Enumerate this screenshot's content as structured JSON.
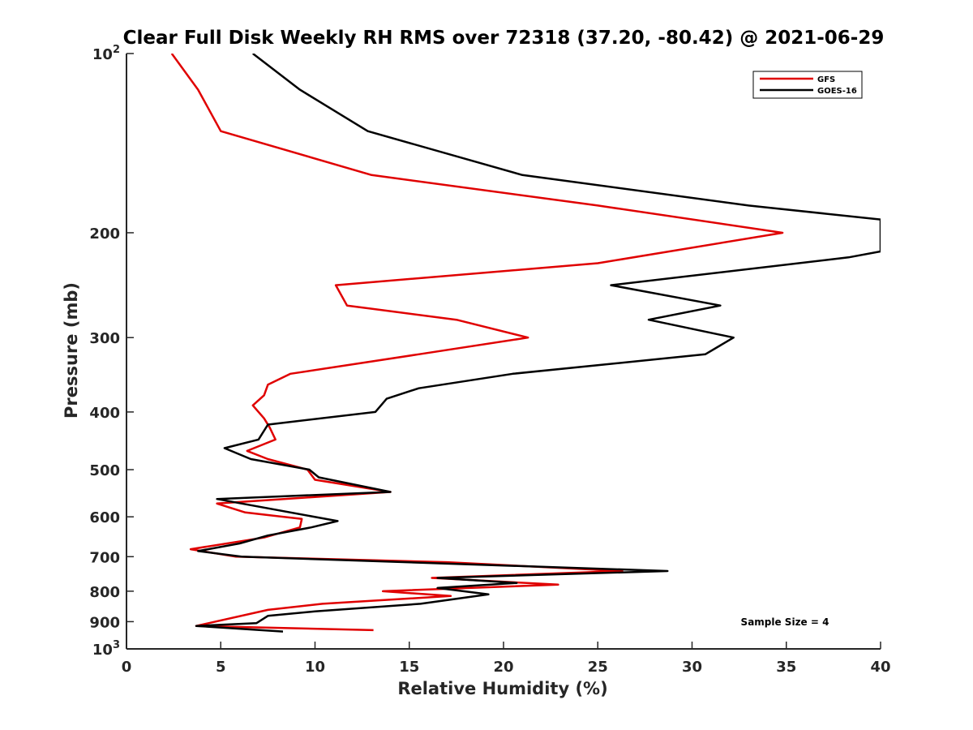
{
  "chart_data": {
    "type": "line",
    "title": "Clear Full Disk Weekly RH RMS over 72318 (37.20, -80.42) @ 2021-06-29",
    "xlabel": "Relative Humidity (%)",
    "ylabel": "Pressure (mb)",
    "xlim": [
      0,
      40
    ],
    "ylim": [
      100,
      1000
    ],
    "y_scale": "log",
    "y_reversed": true,
    "grid": false,
    "legend_position": "top-right",
    "x_ticks": [
      0,
      5,
      10,
      15,
      20,
      25,
      30,
      35,
      40
    ],
    "x_tick_labels": [
      "0",
      "5",
      "10",
      "15",
      "20",
      "25",
      "30",
      "35",
      "40"
    ],
    "y_ticks": [
      100,
      200,
      300,
      400,
      500,
      600,
      700,
      800,
      900,
      1000
    ],
    "y_tick_labels": [
      {
        "base": "10",
        "exp": "2"
      },
      {
        "base": "200",
        "exp": ""
      },
      {
        "base": "300",
        "exp": ""
      },
      {
        "base": "400",
        "exp": ""
      },
      {
        "base": "500",
        "exp": ""
      },
      {
        "base": "600",
        "exp": ""
      },
      {
        "base": "700",
        "exp": ""
      },
      {
        "base": "800",
        "exp": ""
      },
      {
        "base": "900",
        "exp": ""
      },
      {
        "base": "10",
        "exp": "3"
      }
    ],
    "series": [
      {
        "name": "GFS",
        "color": "#e00000",
        "points": [
          [
            2.4,
            100
          ],
          [
            3.8,
            115
          ],
          [
            5.0,
            135
          ],
          [
            13.0,
            160
          ],
          [
            25.0,
            180
          ],
          [
            34.8,
            200
          ],
          [
            25.0,
            225
          ],
          [
            11.1,
            245
          ],
          [
            11.7,
            265
          ],
          [
            17.5,
            280
          ],
          [
            21.3,
            300
          ],
          [
            15.5,
            320
          ],
          [
            8.7,
            345
          ],
          [
            7.5,
            360
          ],
          [
            7.3,
            375
          ],
          [
            6.7,
            390
          ],
          [
            7.3,
            410
          ],
          [
            7.6,
            425
          ],
          [
            7.9,
            445
          ],
          [
            6.4,
            465
          ],
          [
            7.5,
            480
          ],
          [
            9.6,
            500
          ],
          [
            10.0,
            520
          ],
          [
            14.0,
            545
          ],
          [
            4.8,
            570
          ],
          [
            6.3,
            590
          ],
          [
            9.3,
            605
          ],
          [
            9.2,
            625
          ],
          [
            7.3,
            650
          ],
          [
            3.4,
            680
          ],
          [
            5.8,
            700
          ],
          [
            17.0,
            715
          ],
          [
            26.3,
            740
          ],
          [
            16.2,
            760
          ],
          [
            22.9,
            780
          ],
          [
            13.6,
            800
          ],
          [
            17.2,
            815
          ],
          [
            10.4,
            840
          ],
          [
            7.5,
            860
          ],
          [
            3.7,
            915
          ],
          [
            13.1,
            930
          ]
        ]
      },
      {
        "name": "GOES-16",
        "color": "#000000",
        "points": [
          [
            6.7,
            100
          ],
          [
            9.2,
            115
          ],
          [
            12.8,
            135
          ],
          [
            21.0,
            160
          ],
          [
            33.0,
            180
          ],
          [
            40.0,
            190
          ],
          [
            40.0,
            215
          ],
          [
            38.3,
            220
          ],
          [
            25.7,
            245
          ],
          [
            31.5,
            265
          ],
          [
            27.7,
            280
          ],
          [
            32.2,
            300
          ],
          [
            30.7,
            320
          ],
          [
            20.5,
            345
          ],
          [
            15.5,
            365
          ],
          [
            13.8,
            380
          ],
          [
            13.2,
            400
          ],
          [
            7.5,
            420
          ],
          [
            7.0,
            445
          ],
          [
            5.2,
            460
          ],
          [
            6.6,
            480
          ],
          [
            9.7,
            500
          ],
          [
            10.2,
            515
          ],
          [
            14.0,
            545
          ],
          [
            4.8,
            560
          ],
          [
            11.2,
            610
          ],
          [
            9.8,
            625
          ],
          [
            7.5,
            645
          ],
          [
            6.0,
            665
          ],
          [
            3.8,
            685
          ],
          [
            6.1,
            700
          ],
          [
            28.7,
            740
          ],
          [
            16.5,
            760
          ],
          [
            20.7,
            775
          ],
          [
            16.5,
            790
          ],
          [
            19.2,
            810
          ],
          [
            15.6,
            840
          ],
          [
            10.0,
            865
          ],
          [
            7.5,
            880
          ],
          [
            6.9,
            905
          ],
          [
            3.7,
            915
          ],
          [
            8.3,
            935
          ]
        ]
      }
    ],
    "legend": [
      {
        "label": "GFS",
        "color": "#e00000"
      },
      {
        "label": "GOES-16",
        "color": "#000000"
      }
    ],
    "annotations": [
      "Sample Size = 4"
    ]
  }
}
